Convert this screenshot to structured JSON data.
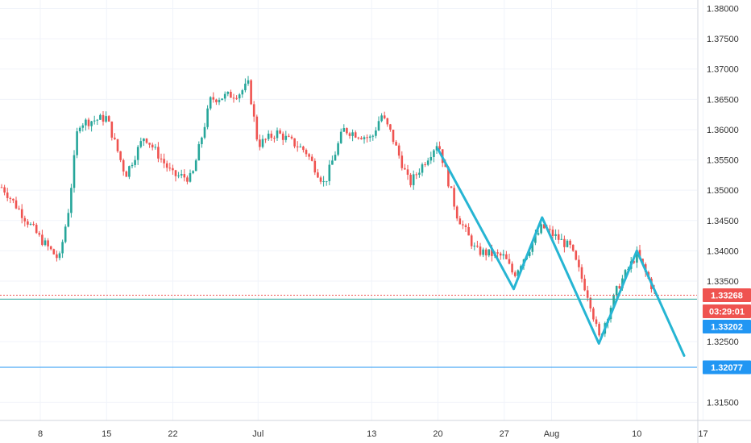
{
  "chart_data": {
    "type": "candlestick",
    "title": "",
    "xlabel": "",
    "ylabel": "",
    "ylim": [
      1.312,
      1.3814
    ],
    "grid": true,
    "x_ticks": [
      "8",
      "15",
      "22",
      "Jul",
      "13",
      "20",
      "27",
      "Aug",
      "10",
      "17"
    ],
    "y_ticks": [
      "1.38000",
      "1.37500",
      "1.37000",
      "1.36500",
      "1.36000",
      "1.35500",
      "1.35000",
      "1.34500",
      "1.34000",
      "1.33500",
      "1.32500",
      "1.31500"
    ],
    "price_tags": [
      {
        "label": "1.33268",
        "value": 1.33268,
        "color": "#ef5350"
      },
      {
        "label": "03:29:01",
        "value": null,
        "color": "#ef5350"
      },
      {
        "label": "1.33202",
        "value": 1.33202,
        "color": "#2196f3"
      },
      {
        "label": "1.32077",
        "value": 1.32077,
        "color": "#2196f3"
      }
    ],
    "horizontal_lines": [
      {
        "value": 1.33268,
        "color": "#ef5350",
        "style": "dotted"
      },
      {
        "value": 1.33202,
        "color": "#26a69a",
        "style": "solid"
      },
      {
        "value": 1.32077,
        "color": "#2196f3",
        "style": "solid"
      }
    ],
    "pattern_line": {
      "color": "#26b5d3",
      "points": [
        {
          "x": "Jul 20",
          "y": 1.3568
        },
        {
          "x": "Jul 28",
          "y": 1.3337
        },
        {
          "x": "Jul 31",
          "y": 1.3455
        },
        {
          "x": "Aug 6",
          "y": 1.3247
        },
        {
          "x": "Aug 10",
          "y": 1.34
        },
        {
          "x": "Aug 15",
          "y": 1.3227
        }
      ]
    },
    "anchors": [
      {
        "x": "Jun 4",
        "y": 1.3505
      },
      {
        "x": "Jun 8",
        "y": 1.342
      },
      {
        "x": "Jun 10",
        "y": 1.3385
      },
      {
        "x": "Jun 11",
        "y": 1.347
      },
      {
        "x": "Jun 12",
        "y": 1.361
      },
      {
        "x": "Jun 15",
        "y": 1.362
      },
      {
        "x": "Jun 17",
        "y": 1.3525
      },
      {
        "x": "Jun 19",
        "y": 1.359
      },
      {
        "x": "Jun 22",
        "y": 1.3525
      },
      {
        "x": "Jun 24",
        "y": 1.352
      },
      {
        "x": "Jun 26",
        "y": 1.365
      },
      {
        "x": "Jun 29",
        "y": 1.366
      },
      {
        "x": "Jun 30",
        "y": 1.3675
      },
      {
        "x": "Jul 1",
        "y": 1.3575
      },
      {
        "x": "Jul 3",
        "y": 1.3595
      },
      {
        "x": "Jul 6",
        "y": 1.3565
      },
      {
        "x": "Jul 8",
        "y": 1.351
      },
      {
        "x": "Jul 10",
        "y": 1.36
      },
      {
        "x": "Jul 13",
        "y": 1.3585
      },
      {
        "x": "Jul 14",
        "y": 1.3625
      },
      {
        "x": "Jul 15",
        "y": 1.3595
      },
      {
        "x": "Jul 17",
        "y": 1.351
      },
      {
        "x": "Jul 20",
        "y": 1.358
      },
      {
        "x": "Jul 22",
        "y": 1.346
      },
      {
        "x": "Jul 24",
        "y": 1.34
      },
      {
        "x": "Jul 27",
        "y": 1.339
      },
      {
        "x": "Jul 28",
        "y": 1.336
      },
      {
        "x": "Jul 31",
        "y": 1.344
      },
      {
        "x": "Aug 3",
        "y": 1.3405
      },
      {
        "x": "Aug 5",
        "y": 1.332
      },
      {
        "x": "Aug 6",
        "y": 1.3255
      },
      {
        "x": "Aug 8",
        "y": 1.334
      },
      {
        "x": "Aug 10",
        "y": 1.3395
      },
      {
        "x": "Aug 12",
        "y": 1.3327
      }
    ]
  }
}
